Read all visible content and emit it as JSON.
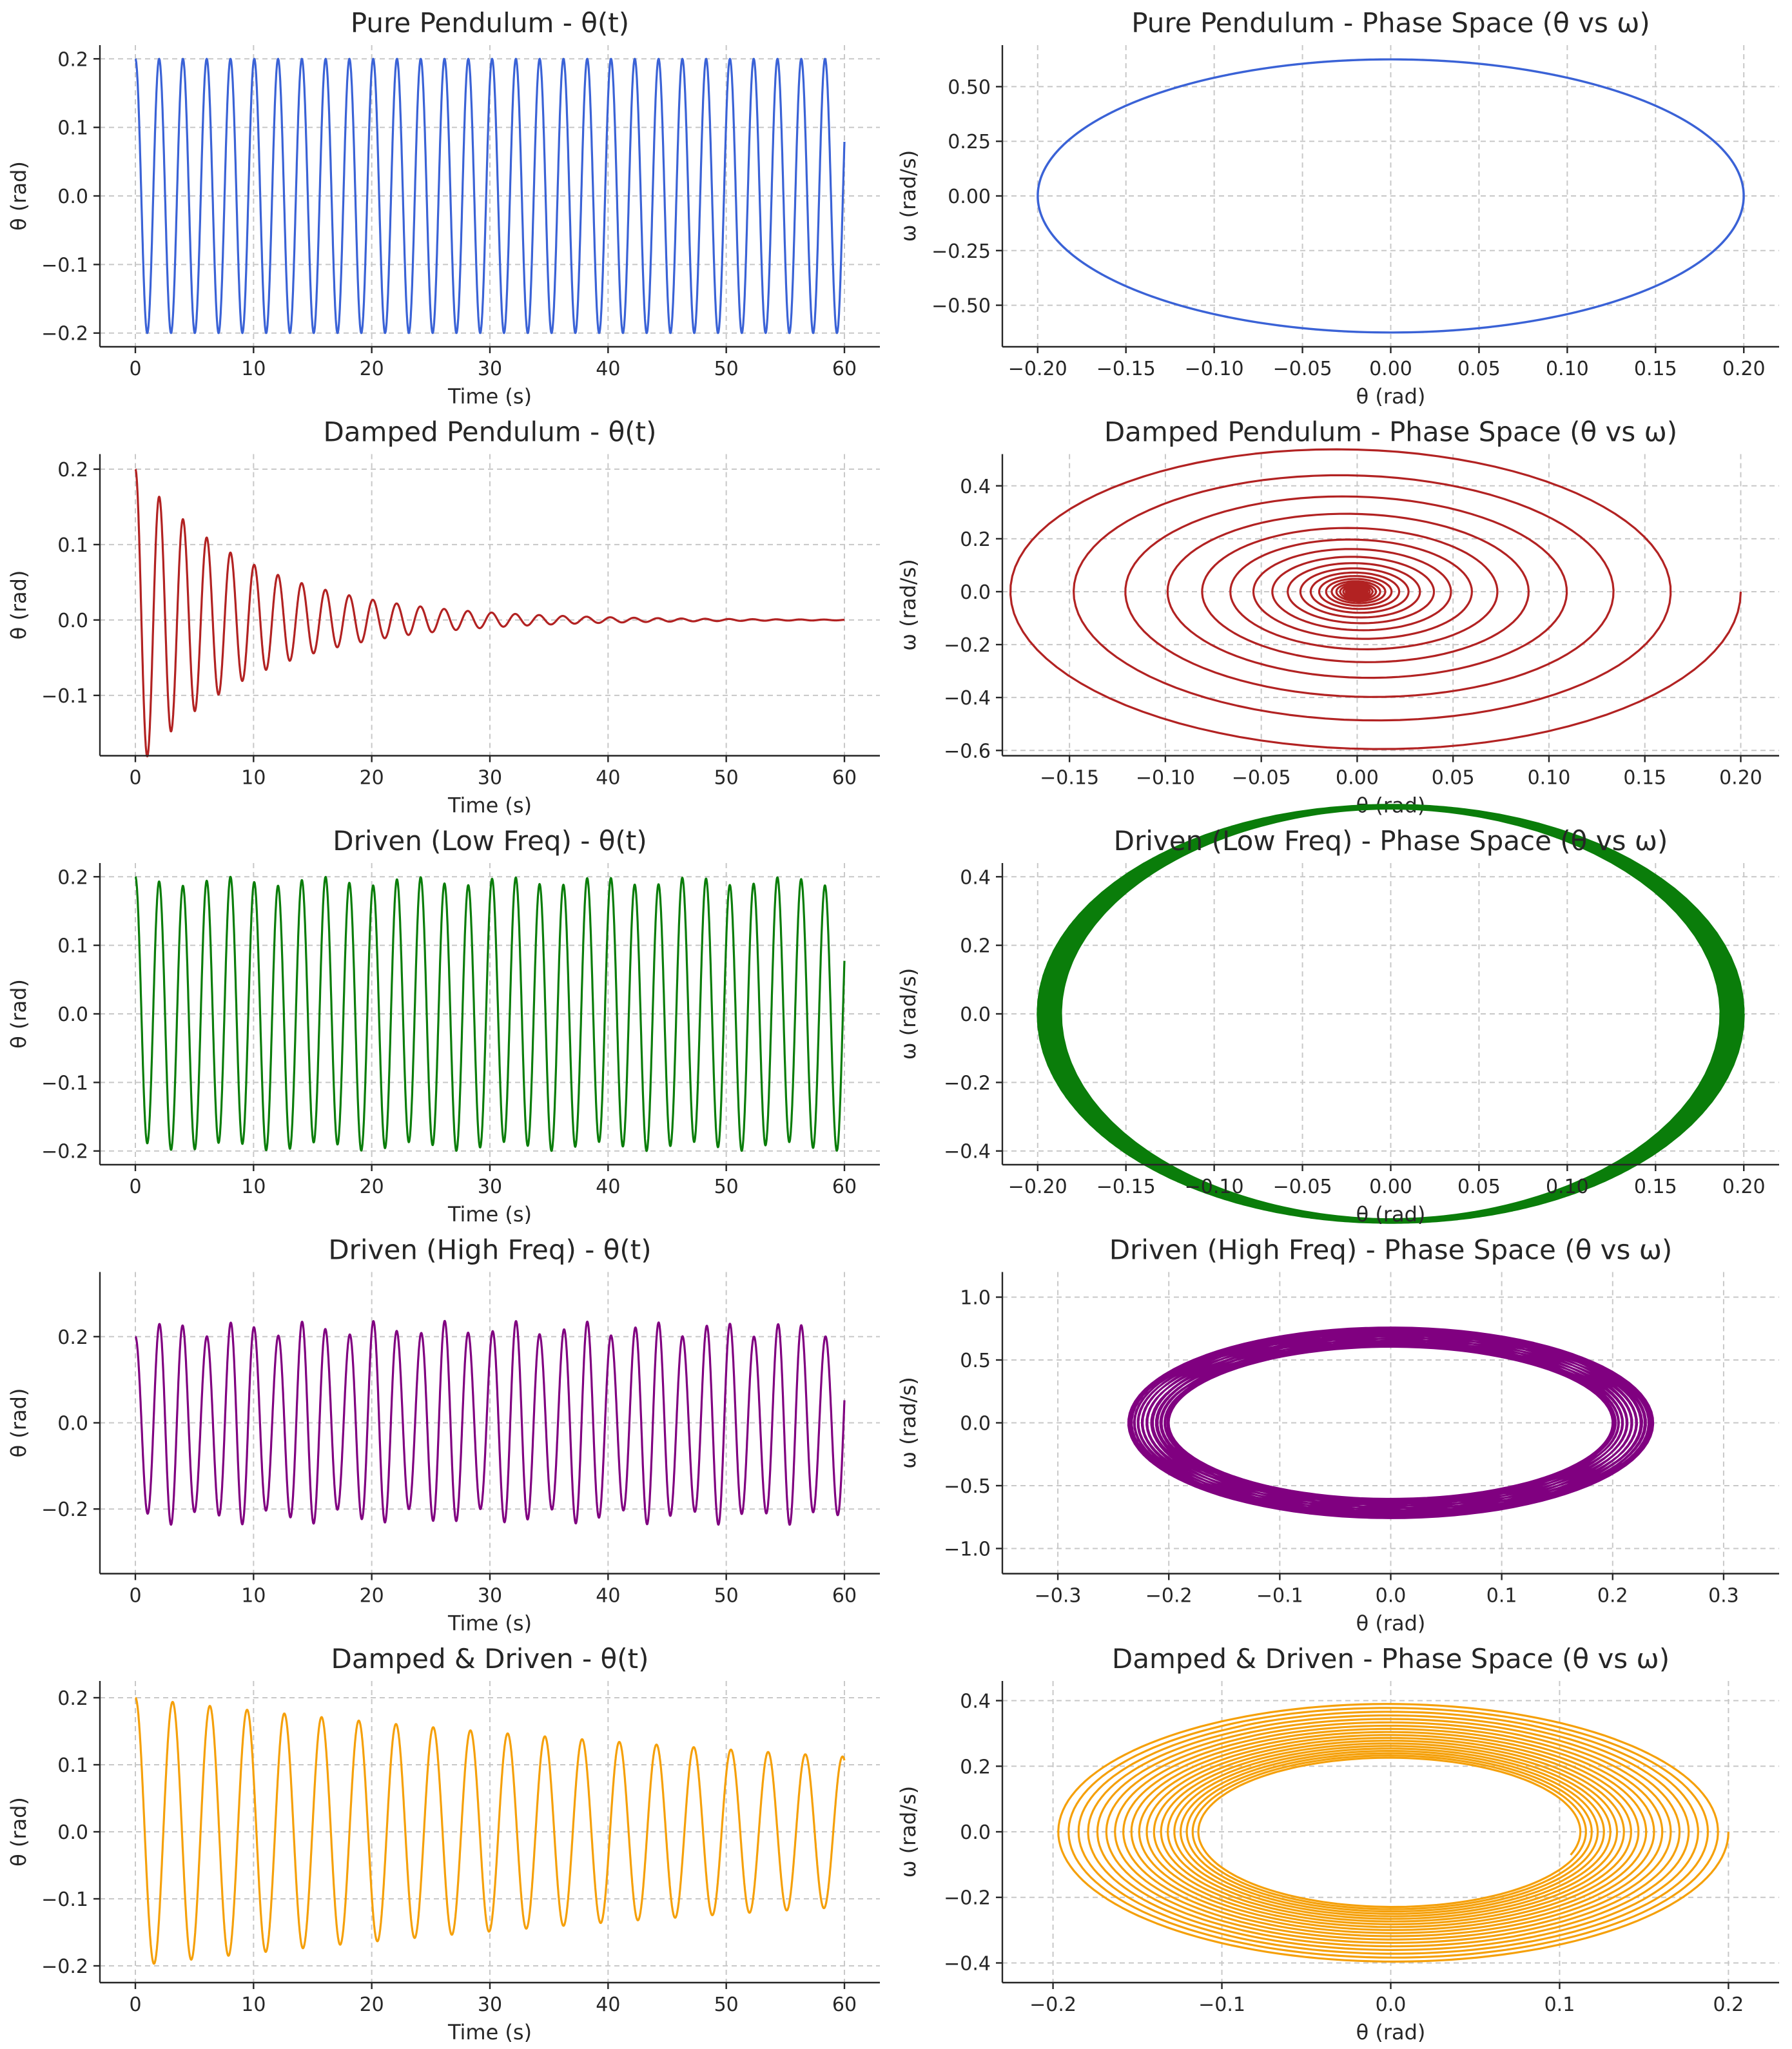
{
  "chart_data": [
    {
      "id": "pure-t",
      "type": "line",
      "title": "Pure Pendulum - θ(t)",
      "xlabel": "Time (s)",
      "ylabel": "θ (rad)",
      "color": "#3a62d6",
      "grid": true,
      "xlim": [
        -3,
        63
      ],
      "ylim": [
        -0.22,
        0.22
      ],
      "xticks": [
        0,
        10,
        20,
        30,
        40,
        50,
        60
      ],
      "yticks": [
        -0.2,
        -0.1,
        0.0,
        0.1,
        0.2
      ],
      "xtick_labels": [
        "0",
        "10",
        "20",
        "30",
        "40",
        "50",
        "60"
      ],
      "ytick_labels": [
        "−0.2",
        "−0.1",
        "0.0",
        "0.1",
        "0.2"
      ],
      "series": [
        {
          "model": "cos",
          "x_range": [
            0,
            60
          ],
          "theta0": 0.2,
          "omega": 3.13,
          "gamma": 0,
          "drive_amp": 0,
          "drive_freq": 0
        }
      ]
    },
    {
      "id": "pure-phase",
      "type": "line",
      "title": "Pure Pendulum - Phase Space (θ vs ω)",
      "xlabel": "θ (rad)",
      "ylabel": "ω (rad/s)",
      "color": "#3a62d6",
      "grid": true,
      "xlim": [
        -0.22,
        0.22
      ],
      "ylim": [
        -0.69,
        0.69
      ],
      "xticks": [
        -0.2,
        -0.15,
        -0.1,
        -0.05,
        0.0,
        0.05,
        0.1,
        0.15,
        0.2
      ],
      "yticks": [
        -0.5,
        -0.25,
        0.0,
        0.25,
        0.5
      ],
      "xtick_labels": [
        "−0.20",
        "−0.15",
        "−0.10",
        "−0.05",
        "0.00",
        "0.05",
        "0.10",
        "0.15",
        "0.20"
      ],
      "ytick_labels": [
        "−0.50",
        "−0.25",
        "0.00",
        "0.25",
        "0.50"
      ],
      "series": [
        {
          "model": "phase",
          "source": "pure-t"
        }
      ]
    },
    {
      "id": "damped-t",
      "type": "line",
      "title": "Damped Pendulum - θ(t)",
      "xlabel": "Time (s)",
      "ylabel": "θ (rad)",
      "color": "#b22222",
      "grid": true,
      "xlim": [
        -3,
        63
      ],
      "ylim": [
        -0.18,
        0.22
      ],
      "xticks": [
        0,
        10,
        20,
        30,
        40,
        50,
        60
      ],
      "yticks": [
        -0.1,
        0.0,
        0.1,
        0.2
      ],
      "xtick_labels": [
        "0",
        "10",
        "20",
        "30",
        "40",
        "50",
        "60"
      ],
      "ytick_labels": [
        "−0.1",
        "0.0",
        "0.1",
        "0.2"
      ],
      "series": [
        {
          "model": "damped",
          "x_range": [
            0,
            60
          ],
          "theta0": 0.2,
          "omega": 3.13,
          "gamma": 0.2,
          "drive_amp": 0,
          "drive_freq": 0
        }
      ]
    },
    {
      "id": "damped-phase",
      "type": "line",
      "title": "Damped Pendulum - Phase Space (θ vs ω)",
      "xlabel": "θ (rad)",
      "ylabel": "ω (rad/s)",
      "color": "#b22222",
      "grid": true,
      "xlim": [
        -0.185,
        0.22
      ],
      "ylim": [
        -0.62,
        0.52
      ],
      "xticks": [
        -0.15,
        -0.1,
        -0.05,
        0.0,
        0.05,
        0.1,
        0.15,
        0.2
      ],
      "yticks": [
        -0.6,
        -0.4,
        -0.2,
        0.0,
        0.2,
        0.4
      ],
      "xtick_labels": [
        "−0.15",
        "−0.10",
        "−0.05",
        "0.00",
        "0.05",
        "0.10",
        "0.15",
        "0.20"
      ],
      "ytick_labels": [
        "−0.6",
        "−0.4",
        "−0.2",
        "0.0",
        "0.2",
        "0.4"
      ],
      "series": [
        {
          "model": "phase",
          "source": "damped-t"
        }
      ]
    },
    {
      "id": "low-t",
      "type": "line",
      "title": "Driven (Low Freq) - θ(t)",
      "xlabel": "Time (s)",
      "ylabel": "θ (rad)",
      "color": "#0a7d0a",
      "grid": true,
      "xlim": [
        -3,
        63
      ],
      "ylim": [
        -0.22,
        0.22
      ],
      "xticks": [
        0,
        10,
        20,
        30,
        40,
        50,
        60
      ],
      "yticks": [
        -0.2,
        -0.1,
        0.0,
        0.1,
        0.2
      ],
      "xtick_labels": [
        "0",
        "10",
        "20",
        "30",
        "40",
        "50",
        "60"
      ],
      "ytick_labels": [
        "−0.2",
        "−0.1",
        "0.0",
        "0.1",
        "0.2"
      ],
      "series": [
        {
          "model": "driven",
          "x_range": [
            0,
            60
          ],
          "theta0": 0.2,
          "omega": 3.13,
          "gamma": 0,
          "drive_amp": 0.5,
          "drive_freq": 0.8
        }
      ]
    },
    {
      "id": "low-phase",
      "type": "line",
      "title": "Driven (Low Freq) - Phase Space (θ vs ω)",
      "xlabel": "θ (rad)",
      "ylabel": "ω (rad/s)",
      "color": "#0a7d0a",
      "grid": true,
      "xlim": [
        -0.22,
        0.22
      ],
      "ylim": [
        -0.44,
        0.44
      ],
      "xticks": [
        -0.2,
        -0.15,
        -0.1,
        -0.05,
        0.0,
        0.05,
        0.1,
        0.15,
        0.2
      ],
      "yticks": [
        -0.4,
        -0.2,
        0.0,
        0.2,
        0.4
      ],
      "xtick_labels": [
        "−0.20",
        "−0.15",
        "−0.10",
        "−0.05",
        "0.00",
        "0.05",
        "0.10",
        "0.15",
        "0.20"
      ],
      "ytick_labels": [
        "−0.4",
        "−0.2",
        "0.0",
        "0.2",
        "0.4"
      ],
      "series": [
        {
          "model": "phase",
          "source": "low-t"
        }
      ]
    },
    {
      "id": "high-t",
      "type": "line",
      "title": "Driven (High Freq) - θ(t)",
      "xlabel": "Time (s)",
      "ylabel": "θ (rad)",
      "color": "#800080",
      "grid": true,
      "xlim": [
        -3,
        63
      ],
      "ylim": [
        -0.35,
        0.35
      ],
      "xticks": [
        0,
        10,
        20,
        30,
        40,
        50,
        60
      ],
      "yticks": [
        -0.2,
        0.0,
        0.2
      ],
      "xtick_labels": [
        "0",
        "10",
        "20",
        "30",
        "40",
        "50",
        "60"
      ],
      "ytick_labels": [
        "−0.2",
        "0.0",
        "0.2"
      ],
      "series": [
        {
          "model": "driven",
          "x_range": [
            0,
            60
          ],
          "theta0": 0.2,
          "omega": 3.13,
          "gamma": 0,
          "drive_amp": 1.2,
          "drive_freq": 4.2
        }
      ]
    },
    {
      "id": "high-phase",
      "type": "line",
      "title": "Driven (High Freq) - Phase Space (θ vs ω)",
      "xlabel": "θ (rad)",
      "ylabel": "ω (rad/s)",
      "color": "#800080",
      "grid": true,
      "xlim": [
        -0.35,
        0.35
      ],
      "ylim": [
        -1.2,
        1.2
      ],
      "xticks": [
        -0.3,
        -0.2,
        -0.1,
        0.0,
        0.1,
        0.2,
        0.3
      ],
      "yticks": [
        -1.0,
        -0.5,
        0.0,
        0.5,
        1.0
      ],
      "xtick_labels": [
        "−0.3",
        "−0.2",
        "−0.1",
        "0.0",
        "0.1",
        "0.2",
        "0.3"
      ],
      "ytick_labels": [
        "−1.0",
        "−0.5",
        "0.0",
        "0.5",
        "1.0"
      ],
      "series": [
        {
          "model": "phase",
          "source": "high-t"
        }
      ]
    },
    {
      "id": "dd-t",
      "type": "line",
      "title": "Damped & Driven - θ(t)",
      "xlabel": "Time (s)",
      "ylabel": "θ (rad)",
      "color": "#f5a00a",
      "grid": true,
      "xlim": [
        -3,
        63
      ],
      "ylim": [
        -0.225,
        0.225
      ],
      "xticks": [
        0,
        10,
        20,
        30,
        40,
        50,
        60
      ],
      "yticks": [
        -0.2,
        -0.1,
        0.0,
        0.1,
        0.2
      ],
      "xtick_labels": [
        "0",
        "10",
        "20",
        "30",
        "40",
        "50",
        "60"
      ],
      "ytick_labels": [
        "−0.2",
        "−0.1",
        "0.0",
        "0.1",
        "0.2"
      ],
      "series": [
        {
          "model": "driven",
          "x_range": [
            0,
            60
          ],
          "theta0": 0.2,
          "omega": 2.0,
          "gamma": 0.02,
          "drive_amp": 0.01,
          "drive_freq": 2.0
        }
      ]
    },
    {
      "id": "dd-phase",
      "type": "line",
      "title": "Damped & Driven - Phase Space (θ vs ω)",
      "xlabel": "θ (rad)",
      "ylabel": "ω (rad/s)",
      "color": "#f5a00a",
      "grid": true,
      "xlim": [
        -0.23,
        0.23
      ],
      "ylim": [
        -0.46,
        0.46
      ],
      "xticks": [
        -0.2,
        -0.1,
        0.0,
        0.1,
        0.2
      ],
      "yticks": [
        -0.4,
        -0.2,
        0.0,
        0.2,
        0.4
      ],
      "xtick_labels": [
        "−0.2",
        "−0.1",
        "0.0",
        "0.1",
        "0.2"
      ],
      "ytick_labels": [
        "−0.4",
        "−0.2",
        "0.0",
        "0.2",
        "0.4"
      ],
      "series": [
        {
          "model": "phase",
          "source": "dd-t"
        }
      ]
    }
  ]
}
